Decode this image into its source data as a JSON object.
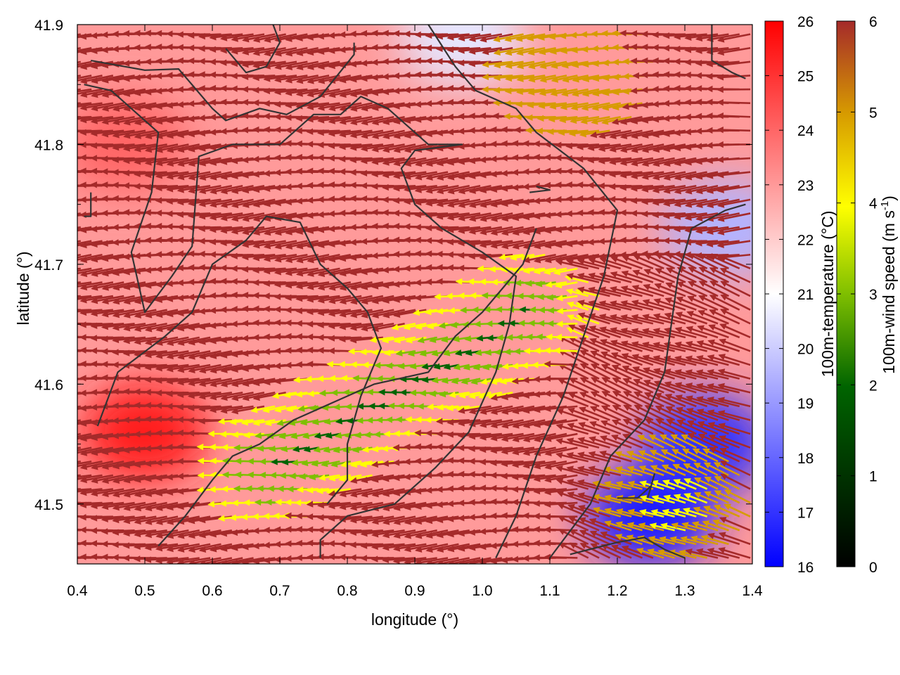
{
  "chart_data": {
    "type": "heatmap",
    "subtype": "vector-field-over-temperature-map",
    "title": "",
    "xlabel": "longitude (°)",
    "ylabel": "latitude (°)",
    "xlim": [
      0.4,
      1.4
    ],
    "ylim": [
      41.45,
      41.9
    ],
    "xticks": [
      "0.4",
      "0.5",
      "0.6",
      "0.7",
      "0.8",
      "0.9",
      "1.0",
      "1.1",
      "1.2",
      "1.3",
      "1.4"
    ],
    "yticks": [
      "41.5",
      "41.6",
      "41.7",
      "41.8",
      "41.9"
    ],
    "grid": false,
    "temperature": {
      "label": "100m-temperature (°C)",
      "range": [
        16,
        26
      ],
      "ticks": [
        "16",
        "17",
        "18",
        "19",
        "20",
        "21",
        "22",
        "23",
        "24",
        "25",
        "26"
      ],
      "colors": [
        "#0000ff",
        "#ffffff",
        "#ff0000"
      ],
      "hotspots": [
        {
          "lon": 0.5,
          "lat": 41.56,
          "value": 25.5
        },
        {
          "lon": 0.47,
          "lat": 41.8,
          "value": 24.0
        },
        {
          "lon": 0.75,
          "lat": 41.55,
          "value": 23.0
        },
        {
          "lon": 0.9,
          "lat": 41.75,
          "value": 23.0
        }
      ],
      "coldspots": [
        {
          "lon": 1.25,
          "lat": 41.49,
          "value": 16.5
        },
        {
          "lon": 1.33,
          "lat": 41.55,
          "value": 17.0
        },
        {
          "lon": 1.36,
          "lat": 41.73,
          "value": 19.5
        },
        {
          "lon": 0.97,
          "lat": 41.89,
          "value": 20.5
        }
      ]
    },
    "wind": {
      "label_main": "100m-wind speed (m s",
      "label_sup": "-1",
      "label_end": ")",
      "range": [
        0,
        6
      ],
      "ticks": [
        "0",
        "1",
        "2",
        "3",
        "4",
        "5",
        "6"
      ],
      "colors": [
        "#000000",
        "#006400",
        "#7fbf00",
        "#ffff00",
        "#d79b00",
        "#a52a2a"
      ],
      "slow_zone": {
        "from": [
          0.7,
          41.53
        ],
        "to": [
          1.08,
          41.66
        ],
        "speed": 1.5
      },
      "yellow_zone_ne": {
        "lon": 1.15,
        "lat": 41.86,
        "speed": 4.3
      },
      "yellow_zone_se": {
        "lon": 1.3,
        "lat": 41.5,
        "speed": 3.5
      }
    },
    "contours": [
      [
        [
          0.42,
          41.87
        ],
        [
          0.5,
          41.862
        ],
        [
          0.55,
          41.863
        ],
        [
          0.6,
          41.83
        ],
        [
          0.62,
          41.82
        ],
        [
          0.67,
          41.83
        ],
        [
          0.71,
          41.825
        ],
        [
          0.76,
          41.84
        ],
        [
          0.81,
          41.875
        ],
        [
          0.81,
          41.885
        ]
      ],
      [
        [
          0.41,
          41.85
        ],
        [
          0.45,
          41.845
        ],
        [
          0.5,
          41.82
        ],
        [
          0.52,
          41.81
        ],
        [
          0.51,
          41.76
        ],
        [
          0.48,
          41.71
        ],
        [
          0.5,
          41.66
        ],
        [
          0.54,
          41.69
        ],
        [
          0.57,
          41.715
        ],
        [
          0.58,
          41.79
        ],
        [
          0.63,
          41.8
        ],
        [
          0.7,
          41.8
        ],
        [
          0.75,
          41.825
        ],
        [
          0.79,
          41.825
        ],
        [
          0.82,
          41.84
        ],
        [
          0.86,
          41.83
        ],
        [
          0.92,
          41.8
        ],
        [
          0.97,
          41.8
        ],
        [
          0.9,
          41.795
        ],
        [
          0.88,
          41.78
        ],
        [
          0.9,
          41.75
        ],
        [
          0.94,
          41.73
        ],
        [
          0.97,
          41.72
        ],
        [
          1.0,
          41.71
        ],
        [
          1.05,
          41.69
        ],
        [
          1.04,
          41.65
        ],
        [
          1.02,
          41.61
        ],
        [
          0.98,
          41.56
        ],
        [
          0.93,
          41.53
        ],
        [
          0.87,
          41.5
        ],
        [
          0.8,
          41.49
        ],
        [
          0.76,
          41.47
        ],
        [
          0.76,
          41.455
        ]
      ],
      [
        [
          0.62,
          41.88
        ],
        [
          0.65,
          41.86
        ],
        [
          0.68,
          41.865
        ],
        [
          0.7,
          41.885
        ],
        [
          0.69,
          41.9
        ]
      ],
      [
        [
          0.92,
          41.9
        ],
        [
          0.96,
          41.865
        ],
        [
          0.99,
          41.845
        ],
        [
          1.05,
          41.83
        ],
        [
          1.08,
          41.81
        ],
        [
          1.15,
          41.78
        ],
        [
          1.2,
          41.745
        ],
        [
          1.18,
          41.69
        ],
        [
          1.15,
          41.64
        ],
        [
          1.12,
          41.59
        ],
        [
          1.08,
          41.54
        ],
        [
          1.05,
          41.49
        ],
        [
          1.02,
          41.455
        ]
      ],
      [
        [
          0.43,
          41.565
        ],
        [
          0.46,
          41.61
        ],
        [
          0.53,
          41.64
        ],
        [
          0.57,
          41.66
        ],
        [
          0.6,
          41.7
        ],
        [
          0.65,
          41.72
        ],
        [
          0.68,
          41.74
        ],
        [
          0.73,
          41.735
        ],
        [
          0.76,
          41.7
        ],
        [
          0.8,
          41.68
        ],
        [
          0.83,
          41.66
        ],
        [
          0.85,
          41.63
        ],
        [
          0.82,
          41.59
        ],
        [
          0.8,
          41.55
        ],
        [
          0.8,
          41.52
        ],
        [
          0.77,
          41.5
        ]
      ],
      [
        [
          0.52,
          41.465
        ],
        [
          0.56,
          41.49
        ],
        [
          0.6,
          41.52
        ],
        [
          0.63,
          41.54
        ],
        [
          0.67,
          41.55
        ],
        [
          0.72,
          41.57
        ],
        [
          0.78,
          41.585
        ],
        [
          0.84,
          41.6
        ],
        [
          0.88,
          41.605
        ],
        [
          0.92,
          41.61
        ],
        [
          0.96,
          41.64
        ],
        [
          1.0,
          41.66
        ],
        [
          1.03,
          41.68
        ],
        [
          1.06,
          41.7
        ],
        [
          1.08,
          41.73
        ]
      ],
      [
        [
          1.1,
          41.455
        ],
        [
          1.16,
          41.5
        ],
        [
          1.19,
          41.54
        ],
        [
          1.24,
          41.57
        ],
        [
          1.27,
          41.61
        ],
        [
          1.28,
          41.65
        ],
        [
          1.29,
          41.69
        ],
        [
          1.31,
          41.73
        ],
        [
          1.36,
          41.745
        ],
        [
          1.39,
          41.75
        ]
      ],
      [
        [
          1.13,
          41.458
        ],
        [
          1.2,
          41.468
        ],
        [
          1.24,
          41.472
        ],
        [
          1.27,
          41.462
        ],
        [
          1.3,
          41.455
        ]
      ],
      [
        [
          1.2,
          41.505
        ],
        [
          1.23,
          41.505
        ],
        [
          1.25,
          41.515
        ],
        [
          1.255,
          41.525
        ],
        [
          1.245,
          41.505
        ]
      ],
      [
        [
          1.34,
          41.9
        ],
        [
          1.34,
          41.87
        ],
        [
          1.37,
          41.86
        ],
        [
          1.39,
          41.855
        ]
      ],
      [
        [
          1.07,
          41.76
        ],
        [
          1.1,
          41.762
        ],
        [
          1.08,
          41.765
        ]
      ],
      [
        [
          0.41,
          41.74
        ],
        [
          0.42,
          41.74
        ],
        [
          0.42,
          41.76
        ]
      ]
    ]
  }
}
